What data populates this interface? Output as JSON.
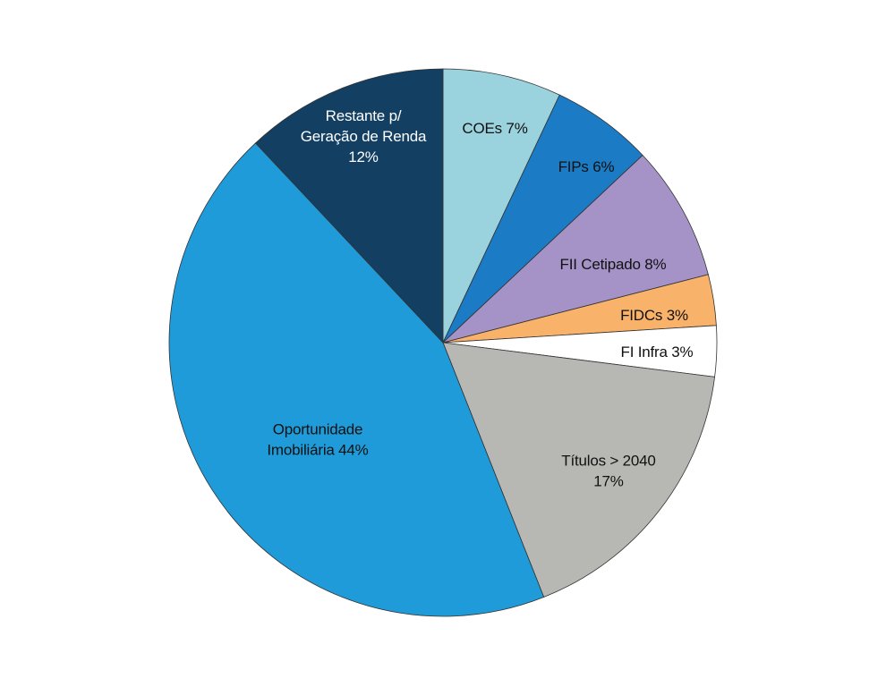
{
  "chart_data": {
    "type": "pie",
    "title": "",
    "start_angle_deg": 0,
    "direction": "clockwise",
    "slices": [
      {
        "lines": [
          "COEs 7%"
        ],
        "value": 7,
        "color": "#9ad3de",
        "text_color": "#111111"
      },
      {
        "lines": [
          "FIPs 6%"
        ],
        "value": 6,
        "color": "#1b7bc4",
        "text_color": "#111111"
      },
      {
        "lines": [
          "FII Cetipado 8%"
        ],
        "value": 8,
        "color": "#a593c8",
        "text_color": "#111111"
      },
      {
        "lines": [
          "FIDCs 3%"
        ],
        "value": 3,
        "color": "#f8b26a",
        "text_color": "#111111"
      },
      {
        "lines": [
          "FI Infra 3%"
        ],
        "value": 3,
        "color": "#ffffff",
        "text_color": "#111111"
      },
      {
        "lines": [
          "Títulos > 2040",
          "17%"
        ],
        "value": 17,
        "color": "#b7b8b3",
        "text_color": "#111111"
      },
      {
        "lines": [
          "Oportunidade",
          "Imobiliária 44%"
        ],
        "value": 44,
        "color": "#1e9bd8",
        "text_color": "#111111"
      },
      {
        "lines": [
          "Restante p/",
          "Geração de Renda",
          "12%"
        ],
        "value": 12,
        "color": "#123f62",
        "text_color": "#ffffff"
      }
    ]
  }
}
